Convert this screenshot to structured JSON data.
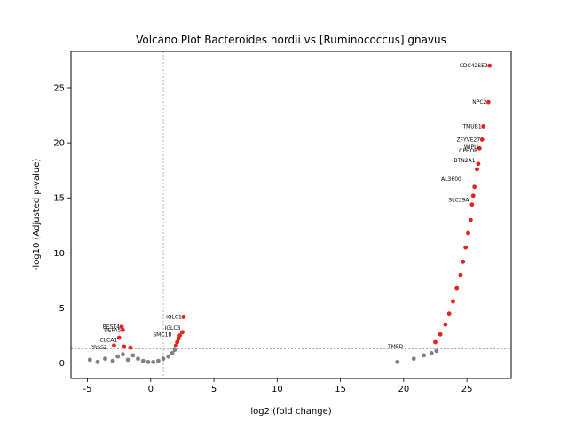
{
  "chart_data": {
    "type": "scatter",
    "title": "Volcano Plot Bacteroides nordii vs [Ruminococcus] gnavus",
    "xlabel": "log2 (fold change)",
    "ylabel": "-log10 (Adjusted p-value)",
    "xlim": [
      -6.3,
      28.5
    ],
    "ylim": [
      -1.4,
      28.3
    ],
    "xticks": [
      -5,
      0,
      5,
      10,
      15,
      20,
      25
    ],
    "yticks": [
      0,
      5,
      10,
      15,
      20,
      25
    ],
    "grid": false,
    "legend": "none",
    "thresholds": {
      "fc_low": -1,
      "fc_high": 1,
      "padj_line": 1.3
    },
    "colors": {
      "significant": "#e8201e",
      "nonsignificant": "#808080",
      "threshold_line": "#808080"
    },
    "series": [
      {
        "values": [
          {
            "x": 26.8,
            "y": 27.0
          },
          {
            "x": 26.7,
            "y": 23.7
          },
          {
            "x": 26.3,
            "y": 21.5
          },
          {
            "x": 26.2,
            "y": 20.3
          },
          {
            "x": 26.0,
            "y": 19.5
          },
          {
            "x": 25.9,
            "y": 18.1
          },
          {
            "x": 25.8,
            "y": 17.6
          },
          {
            "x": 25.6,
            "y": 16.0
          },
          {
            "x": 25.5,
            "y": 15.2
          },
          {
            "x": 25.4,
            "y": 14.4
          },
          {
            "x": 25.3,
            "y": 13.0
          },
          {
            "x": 25.1,
            "y": 11.8
          },
          {
            "x": 24.9,
            "y": 10.5
          },
          {
            "x": 24.7,
            "y": 9.2
          },
          {
            "x": 24.5,
            "y": 8.0
          },
          {
            "x": 24.2,
            "y": 6.8
          },
          {
            "x": 23.9,
            "y": 5.6
          },
          {
            "x": 23.6,
            "y": 4.5
          },
          {
            "x": 23.3,
            "y": 3.5
          },
          {
            "x": 22.9,
            "y": 2.6
          },
          {
            "x": 22.5,
            "y": 1.9
          },
          {
            "x": 2.6,
            "y": 4.2
          },
          {
            "x": 2.5,
            "y": 2.8
          },
          {
            "x": 2.3,
            "y": 2.5
          },
          {
            "x": 2.2,
            "y": 2.2
          },
          {
            "x": 2.1,
            "y": 1.9
          },
          {
            "x": 2.0,
            "y": 1.6
          },
          {
            "x": -2.3,
            "y": 3.3
          },
          {
            "x": -2.2,
            "y": 3.0
          },
          {
            "x": -2.5,
            "y": 2.3
          },
          {
            "x": -2.9,
            "y": 1.6
          },
          {
            "x": -2.1,
            "y": 1.5
          },
          {
            "x": -1.6,
            "y": 1.4
          }
        ]
      },
      {
        "values": [
          {
            "x": 19.5,
            "y": 0.1
          },
          {
            "x": 20.8,
            "y": 0.4
          },
          {
            "x": 21.6,
            "y": 0.7
          },
          {
            "x": 22.2,
            "y": 0.9
          },
          {
            "x": 22.6,
            "y": 1.1
          },
          {
            "x": -4.8,
            "y": 0.3
          },
          {
            "x": -4.2,
            "y": 0.1
          },
          {
            "x": -3.6,
            "y": 0.4
          },
          {
            "x": -3.0,
            "y": 0.2
          },
          {
            "x": -2.6,
            "y": 0.6
          },
          {
            "x": -2.2,
            "y": 0.8
          },
          {
            "x": -1.8,
            "y": 0.3
          },
          {
            "x": -1.4,
            "y": 0.7
          },
          {
            "x": -1.0,
            "y": 0.4
          },
          {
            "x": -0.6,
            "y": 0.2
          },
          {
            "x": -0.2,
            "y": 0.1
          },
          {
            "x": 0.2,
            "y": 0.1
          },
          {
            "x": 0.6,
            "y": 0.2
          },
          {
            "x": 1.0,
            "y": 0.4
          },
          {
            "x": 1.4,
            "y": 0.6
          },
          {
            "x": 1.7,
            "y": 0.9
          },
          {
            "x": 1.9,
            "y": 1.2
          }
        ]
      }
    ],
    "annotations": [
      {
        "text": "CDC42SE2",
        "x": 26.8,
        "y": 27.0
      },
      {
        "text": "NPC2",
        "x": 26.7,
        "y": 23.7
      },
      {
        "text": "TMUB1",
        "x": 26.3,
        "y": 21.5
      },
      {
        "text": "ZFYVE27",
        "x": 26.2,
        "y": 20.3
      },
      {
        "text": "WIPI1",
        "x": 26.1,
        "y": 19.6
      },
      {
        "text": "CPHOR",
        "x": 26.0,
        "y": 19.3
      },
      {
        "text": "BTN2A1",
        "x": 25.8,
        "y": 18.4
      },
      {
        "text": "AL3600",
        "x": 24.7,
        "y": 16.7
      },
      {
        "text": "SLC39A",
        "x": 25.3,
        "y": 14.8
      },
      {
        "text": "IGLC1",
        "x": 2.6,
        "y": 4.2
      },
      {
        "text": "IGLC3",
        "x": 2.5,
        "y": 3.2
      },
      {
        "text": "SMC1B",
        "x": 1.8,
        "y": 2.6
      },
      {
        "text": "BEST4",
        "x": -2.3,
        "y": 3.3
      },
      {
        "text": "DEFA5",
        "x": -2.2,
        "y": 3.0
      },
      {
        "text": "CLCA1",
        "x": -2.5,
        "y": 2.1
      },
      {
        "text": "PRSS2",
        "x": -3.3,
        "y": 1.4
      },
      {
        "text": "TMED",
        "x": 20.1,
        "y": 1.5
      }
    ]
  }
}
